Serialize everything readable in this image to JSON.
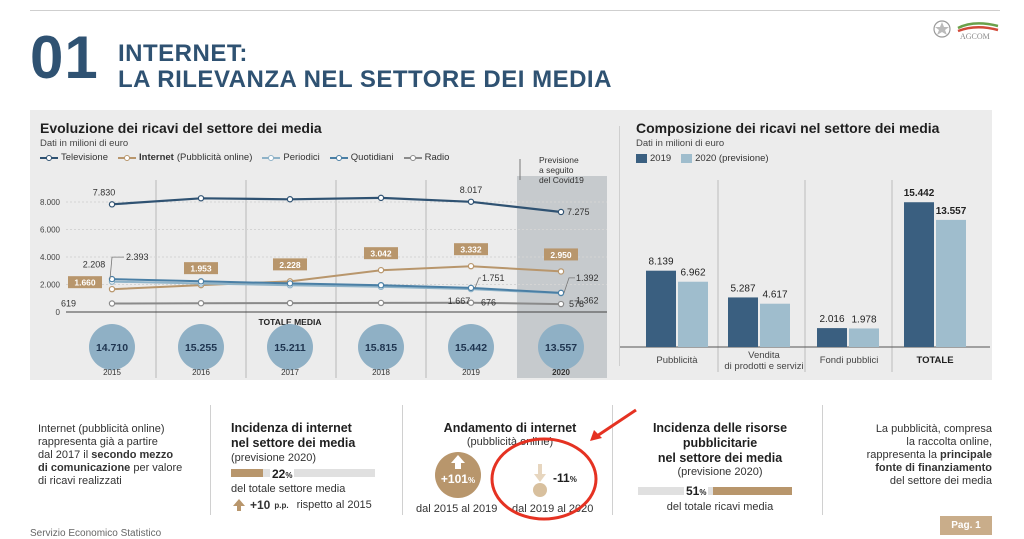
{
  "header": {
    "number": "01",
    "title_line1": "INTERNET:",
    "title_line2": "LA RILEVANZA NEL SETTORE DEI MEDIA",
    "logo_text": "AGCOM"
  },
  "left_chart": {
    "title": "Evoluzione dei ricavi del settore dei media",
    "subtitle": "Dati in milioni di euro",
    "legend": [
      "Televisione",
      "Internet",
      "(Pubblicità online)",
      "Periodici",
      "Quotidiani",
      "Radio"
    ],
    "forecast_note": [
      "Previsione",
      "a seguito",
      "del Covid19"
    ],
    "totale_label": "TOTALE MEDIA",
    "totals": [
      "14.710",
      "15.255",
      "15.211",
      "15.815",
      "15.442",
      "13.557"
    ],
    "value_labels": {
      "tv_2015": "7.830",
      "tv_2019": "8.017",
      "tv_2020": "7.275",
      "net_2015": "1.660",
      "net_2016": "1.953",
      "net_2017": "2.228",
      "net_2018": "3.042",
      "net_2019": "3.332",
      "net_2020": "2.950",
      "per_2015": "2.208",
      "quo_2015": "2.393",
      "quo_2019": "1.751",
      "per_2019": "1.667",
      "radio_2019": "676",
      "quo_2020": "1.392",
      "per_2020": "1.362",
      "radio_2015": "619",
      "radio_2020": "578"
    }
  },
  "chart_data": [
    {
      "type": "line",
      "title": "Evoluzione dei ricavi del settore dei media",
      "subtitle": "Dati in milioni di euro",
      "x": [
        "2015",
        "2016",
        "2017",
        "2018",
        "2019",
        "2020"
      ],
      "yticks": [
        "8.000",
        "6.000",
        "4.000",
        "2.000",
        "0"
      ],
      "ylim": [
        0,
        9000
      ],
      "series": [
        {
          "name": "Televisione",
          "color": "#2f5272",
          "values": [
            7830,
            8270,
            8200,
            8300,
            8017,
            7275
          ]
        },
        {
          "name": "Internet (Pubblicità online)",
          "color": "#b8966c",
          "values": [
            1660,
            1953,
            2228,
            3042,
            3332,
            2950
          ]
        },
        {
          "name": "Periodici",
          "color": "#8fb3c8",
          "values": [
            2208,
            2070,
            1950,
            1830,
            1667,
            1362
          ]
        },
        {
          "name": "Quotidiani",
          "color": "#4a7fa5",
          "values": [
            2393,
            2230,
            2080,
            1950,
            1751,
            1392
          ]
        },
        {
          "name": "Radio",
          "color": "#8a8a8a",
          "values": [
            619,
            640,
            650,
            660,
            676,
            578
          ]
        }
      ],
      "totals": {
        "label": "TOTALE MEDIA",
        "values": [
          14710,
          15255,
          15211,
          15815,
          15442,
          13557
        ]
      },
      "annotation": "Previsione a seguito del Covid19"
    },
    {
      "type": "bar",
      "title": "Composizione dei ricavi nel settore dei media",
      "subtitle": "Dati in milioni di euro",
      "categories": [
        "Pubblicità",
        "Vendita di prodotti e servizi",
        "Fondi pubblici",
        "TOTALE"
      ],
      "series": [
        {
          "name": "2019",
          "color": "#3a5f80",
          "values": [
            8139,
            5287,
            2016,
            15442
          ]
        },
        {
          "name": "2020 (previsione)",
          "color": "#9fbdcd",
          "values": [
            6962,
            4617,
            1978,
            13557
          ]
        }
      ],
      "value_labels": {
        "2019": [
          "8.139",
          "5.287",
          "2.016",
          "15.442"
        ],
        "2020": [
          "6.962",
          "4.617",
          "1.978",
          "13.557"
        ]
      }
    }
  ],
  "right_chart": {
    "title": "Composizione dei ricavi nel settore dei media",
    "subtitle": "Dati in milioni di euro",
    "legend": [
      "2019",
      "2020 (previsione)"
    ],
    "cat_labels": [
      "Pubblicità",
      "Vendita",
      "di prodotti e servizi",
      "Fondi pubblici",
      "TOTALE"
    ]
  },
  "bottom": {
    "col1": {
      "line1": "Internet (pubblicità online)",
      "line2": "rappresenta già a partire",
      "line3a": "dal 2017 il ",
      "line3b": "secondo mezzo",
      "line4a": "di comunicazione",
      "line4b": " per valore",
      "line5": "di ricavi realizzati"
    },
    "col2": {
      "title1": "Incidenza di internet",
      "title2": "nel settore dei media",
      "sub": "(previsione 2020)",
      "pct": "22",
      "pct_unit": "%",
      "desc": "del totale settore media",
      "delta": "+10",
      "delta_unit": "p.p.",
      "delta_desc": "rispetto al 2015"
    },
    "col3": {
      "title": "Andamento di internet",
      "sub": "(pubblicità online)",
      "up_val": "+101",
      "up_unit": "%",
      "up_desc": "dal 2015 al 2019",
      "down_val": "-11",
      "down_unit": "%",
      "down_desc": "dal 2019 al 2020"
    },
    "col4": {
      "title1": "Incidenza delle risorse",
      "title2": "pubblicitarie",
      "title3": "nel settore dei media",
      "sub": "(previsione 2020)",
      "pct": "51",
      "pct_unit": "%",
      "desc": "del totale ricavi media"
    },
    "col5": {
      "line1": "La pubblicità, compresa",
      "line2": "la raccolta online,",
      "line3": "rappresenta la ",
      "line3b": "principale",
      "line4": "fonte di finanziamento",
      "line5": "del settore dei media"
    },
    "gauges": {
      "internet_share": 0.22,
      "ads_share": 0.51
    }
  },
  "footer": {
    "text": "Servizio Economico Statistico",
    "page": "Pag. 1"
  },
  "colors": {
    "navy": "#2f5272",
    "gold": "#b8966c",
    "annotation_red": "#e53222"
  }
}
